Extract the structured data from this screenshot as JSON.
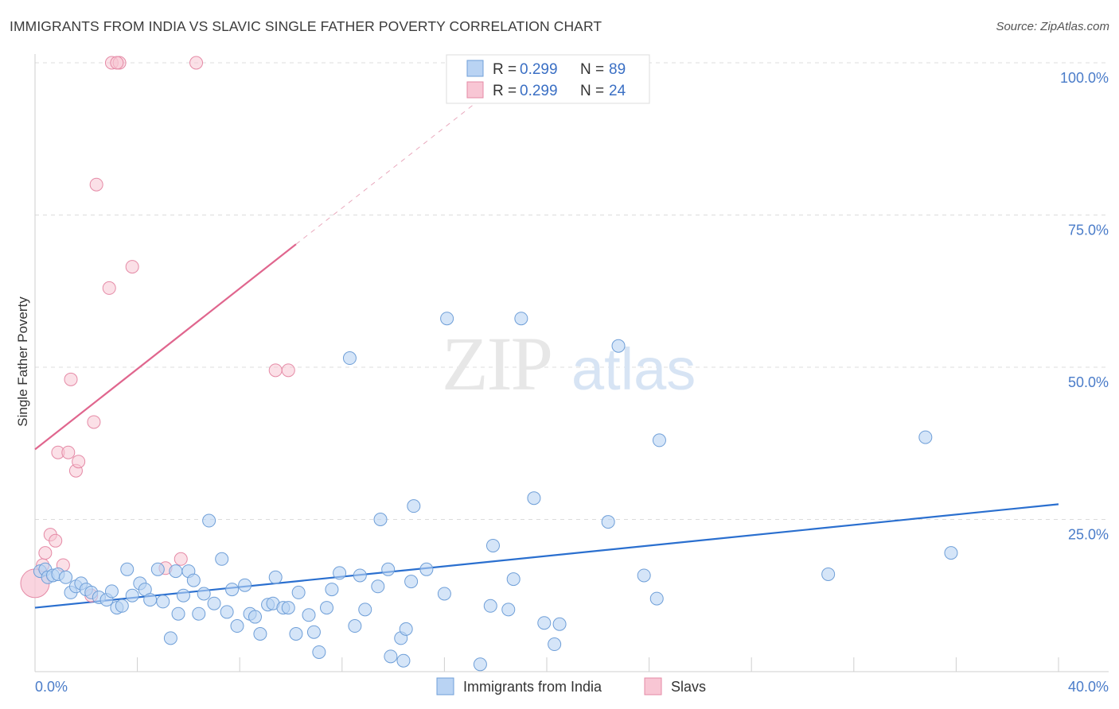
{
  "header": {
    "title": "IMMIGRANTS FROM INDIA VS SLAVIC SINGLE FATHER POVERTY CORRELATION CHART",
    "source": "Source: ZipAtlas.com"
  },
  "watermark": {
    "zip": "ZIP",
    "atlas": "atlas"
  },
  "colors": {
    "blue_fill": "#b9d3f3",
    "blue_stroke": "#6f9fd8",
    "blue_line": "#2a6fcf",
    "pink_fill": "#f8c6d4",
    "pink_stroke": "#e58aa6",
    "pink_line": "#e0668e",
    "tick_text": "#4a7cc9",
    "grid": "#dcdcdc"
  },
  "legend": {
    "rows": [
      {
        "r_label": "R = ",
        "r_value": "0.299",
        "n_label": "N = ",
        "n_value": "89"
      },
      {
        "r_label": "R = ",
        "r_value": "0.299",
        "n_label": "N = ",
        "n_value": "24"
      }
    ]
  },
  "chart_data": {
    "type": "scatter",
    "title": "IMMIGRANTS FROM INDIA VS SLAVIC SINGLE FATHER POVERTY CORRELATION CHART",
    "xlabel": "",
    "ylabel": "Single Father Poverty",
    "xlim": [
      0,
      40
    ],
    "ylim": [
      0,
      100
    ],
    "x_tick_labels": [
      "0.0%",
      "40.0%"
    ],
    "y_ticks": [
      25,
      50,
      75,
      100
    ],
    "y_tick_labels": [
      "25.0%",
      "50.0%",
      "75.0%",
      "100.0%"
    ],
    "grid": true,
    "legend_position": "top-center",
    "series": [
      {
        "name": "Immigrants from India",
        "color": "#6f9fd8",
        "R": 0.299,
        "N": 89,
        "trend": {
          "x": [
            0,
            40
          ],
          "y": [
            10.5,
            27.5
          ]
        },
        "points": [
          [
            0.2,
            16.5
          ],
          [
            0.4,
            16.8
          ],
          [
            0.5,
            15.5
          ],
          [
            0.7,
            15.8
          ],
          [
            0.9,
            16
          ],
          [
            1.2,
            15.5
          ],
          [
            1.4,
            13
          ],
          [
            1.6,
            14
          ],
          [
            1.8,
            14.5
          ],
          [
            2,
            13.5
          ],
          [
            2.2,
            13
          ],
          [
            2.5,
            12.2
          ],
          [
            2.8,
            11.8
          ],
          [
            3,
            13.2
          ],
          [
            3.2,
            10.5
          ],
          [
            3.4,
            10.8
          ],
          [
            3.6,
            16.8
          ],
          [
            3.8,
            12.5
          ],
          [
            4.1,
            14.5
          ],
          [
            4.3,
            13.5
          ],
          [
            4.5,
            11.8
          ],
          [
            4.8,
            16.8
          ],
          [
            5,
            11.5
          ],
          [
            5.3,
            5.5
          ],
          [
            5.5,
            16.5
          ],
          [
            5.6,
            9.5
          ],
          [
            5.8,
            12.5
          ],
          [
            6,
            16.5
          ],
          [
            6.2,
            15
          ],
          [
            6.4,
            9.5
          ],
          [
            6.6,
            12.8
          ],
          [
            6.8,
            24.8
          ],
          [
            7,
            11.2
          ],
          [
            7.3,
            18.5
          ],
          [
            7.5,
            9.8
          ],
          [
            7.7,
            13.5
          ],
          [
            7.9,
            7.5
          ],
          [
            8.2,
            14.2
          ],
          [
            8.4,
            9.5
          ],
          [
            8.6,
            9
          ],
          [
            8.8,
            6.2
          ],
          [
            9.1,
            11
          ],
          [
            9.3,
            11.2
          ],
          [
            9.4,
            15.5
          ],
          [
            9.7,
            10.5
          ],
          [
            9.9,
            10.5
          ],
          [
            10.2,
            6.2
          ],
          [
            10.3,
            13
          ],
          [
            10.7,
            9.3
          ],
          [
            10.9,
            6.5
          ],
          [
            11.1,
            3.2
          ],
          [
            11.4,
            10.5
          ],
          [
            11.6,
            13.5
          ],
          [
            11.9,
            16.2
          ],
          [
            12.3,
            51.5
          ],
          [
            12.5,
            7.5
          ],
          [
            12.7,
            15.8
          ],
          [
            12.9,
            10.2
          ],
          [
            13.4,
            14
          ],
          [
            13.5,
            25
          ],
          [
            13.8,
            16.8
          ],
          [
            13.9,
            2.5
          ],
          [
            14.3,
            5.5
          ],
          [
            14.4,
            1.8
          ],
          [
            14.5,
            7
          ],
          [
            14.8,
            27.2
          ],
          [
            14.7,
            14.8
          ],
          [
            15.3,
            16.8
          ],
          [
            16,
            12.8
          ],
          [
            16.1,
            58
          ],
          [
            17.4,
            1.2
          ],
          [
            17.8,
            10.8
          ],
          [
            17.9,
            20.7
          ],
          [
            18.5,
            10.2
          ],
          [
            18.7,
            15.2
          ],
          [
            19,
            58
          ],
          [
            19.5,
            28.5
          ],
          [
            19.9,
            8
          ],
          [
            20.3,
            4.5
          ],
          [
            20.5,
            7.8
          ],
          [
            22.4,
            24.6
          ],
          [
            22.8,
            53.5
          ],
          [
            23.8,
            15.8
          ],
          [
            24.3,
            12
          ],
          [
            24.4,
            38
          ],
          [
            31,
            16
          ],
          [
            34.8,
            38.5
          ],
          [
            35.8,
            19.5
          ]
        ]
      },
      {
        "name": "Slavs",
        "color": "#e58aa6",
        "R": 0.299,
        "N": 24,
        "trend": {
          "x": [
            0,
            10.2
          ],
          "y": [
            36.5,
            70.2
          ]
        },
        "trend_dashed": {
          "x": [
            10.2,
            17.4
          ],
          "y": [
            70.2,
            94
          ]
        },
        "points": [
          [
            0,
            14.5
          ],
          [
            0.3,
            17.5
          ],
          [
            0.4,
            19.5
          ],
          [
            0.6,
            22.5
          ],
          [
            0.8,
            21.5
          ],
          [
            0.9,
            36
          ],
          [
            1.1,
            17.5
          ],
          [
            1.3,
            36
          ],
          [
            1.4,
            48
          ],
          [
            1.6,
            33
          ],
          [
            1.7,
            34.5
          ],
          [
            2.3,
            41
          ],
          [
            2.4,
            80
          ],
          [
            2.2,
            12.5
          ],
          [
            2.9,
            63
          ],
          [
            3.0,
            100
          ],
          [
            3.3,
            100
          ],
          [
            3.2,
            100
          ],
          [
            3.8,
            66.5
          ],
          [
            5.1,
            17
          ],
          [
            5.7,
            18.5
          ],
          [
            6.3,
            100
          ],
          [
            9.4,
            49.5
          ],
          [
            9.9,
            49.5
          ]
        ]
      }
    ]
  }
}
